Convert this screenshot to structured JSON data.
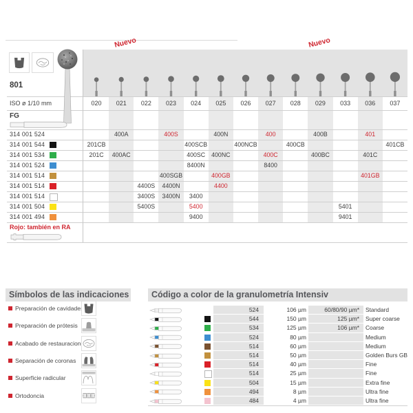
{
  "colors": {
    "accent_red": "#cf2630",
    "band_gray": "#e3e3e3"
  },
  "main_table": {
    "model": "801",
    "nuevo_label": "Nuevo",
    "iso_label": "ISO ø 1/10 mm",
    "shank_label": "FG",
    "footnote": "Rojo: también en RA",
    "header_icons": [
      "cavity-preparation-icon",
      "restoration-finishing-icon"
    ],
    "columns": [
      "020",
      "021",
      "022",
      "023",
      "024",
      "025",
      "026",
      "027",
      "028",
      "029",
      "033",
      "036",
      "037"
    ],
    "rows": [
      {
        "code": "314 001 524",
        "chip": null,
        "cells": [
          {
            "col": "021",
            "value": "400A"
          },
          {
            "col": "023",
            "value": "400S",
            "red": true
          },
          {
            "col": "025",
            "value": "400N"
          },
          {
            "col": "027",
            "value": "400",
            "red": true
          },
          {
            "col": "029",
            "value": "400B"
          },
          {
            "col": "036",
            "value": "401",
            "red": true
          }
        ]
      },
      {
        "code": "314 001 544",
        "chip": "#141414",
        "cells": [
          {
            "col": "020",
            "value": "201CB"
          },
          {
            "col": "024",
            "value": "400SCB"
          },
          {
            "col": "026",
            "value": "400NCB"
          },
          {
            "col": "028",
            "value": "400CB"
          },
          {
            "col": "037",
            "value": "401CB"
          }
        ]
      },
      {
        "code": "314 001 534",
        "chip": "#2fae4a",
        "cells": [
          {
            "col": "020",
            "value": "201C"
          },
          {
            "col": "021",
            "value": "400AC"
          },
          {
            "col": "024",
            "value": "400SC"
          },
          {
            "col": "025",
            "value": "400NC"
          },
          {
            "col": "027",
            "value": "400C",
            "red": true
          },
          {
            "col": "029",
            "value": "400BC"
          },
          {
            "col": "036",
            "value": "401C"
          }
        ]
      },
      {
        "code": "314 001 524",
        "chip": "#3e8ed0",
        "cells": [
          {
            "col": "024",
            "value": "8400N"
          },
          {
            "col": "027",
            "value": "8400"
          }
        ]
      },
      {
        "code": "314 001 514",
        "chip": "#c2913e",
        "cells": [
          {
            "col": "023",
            "value": "400SGB"
          },
          {
            "col": "025",
            "value": "400GB",
            "red": true
          },
          {
            "col": "036",
            "value": "401GB",
            "red": true
          }
        ]
      },
      {
        "code": "314 001 514",
        "chip": "#da2128",
        "cells": [
          {
            "col": "022",
            "value": "4400S"
          },
          {
            "col": "023",
            "value": "4400N"
          },
          {
            "col": "025",
            "value": "4400",
            "red": true
          }
        ]
      },
      {
        "code": "314 001 514",
        "chip": "#ffffff",
        "cells": [
          {
            "col": "022",
            "value": "3400S"
          },
          {
            "col": "023",
            "value": "3400N"
          },
          {
            "col": "024",
            "value": "3400"
          }
        ]
      },
      {
        "code": "314 001 504",
        "chip": "#fbe216",
        "cells": [
          {
            "col": "022",
            "value": "5400S"
          },
          {
            "col": "024",
            "value": "5400",
            "red": true
          },
          {
            "col": "033",
            "value": "5401"
          }
        ]
      },
      {
        "code": "314 001 494",
        "chip": "#f0913c",
        "cells": [
          {
            "col": "024",
            "value": "9400"
          },
          {
            "col": "033",
            "value": "9401"
          }
        ]
      }
    ]
  },
  "symbols_section": {
    "title": "Símbolos de las indicaciones",
    "items": [
      {
        "label": "Preparación de cavidades",
        "icon": "cavity-preparation-icon"
      },
      {
        "label": "Preparación de prótesis",
        "icon": "prosthesis-preparation-icon"
      },
      {
        "label": "Acabado de restauraciones",
        "icon": "restoration-finishing-icon"
      },
      {
        "label": "Separación de coronas",
        "icon": "crown-separation-icon"
      },
      {
        "label": "Superficie radicular",
        "icon": "root-surface-icon"
      },
      {
        "label": "Ortodoncia",
        "icon": "orthodontics-icon"
      }
    ]
  },
  "granulometry_section": {
    "title": "Código a color de la granulometría Intensiv",
    "rows": [
      {
        "chip": null,
        "code": "524",
        "size": "106 µm",
        "alt_size": "60/80/90 µm*",
        "name": "Standard"
      },
      {
        "chip": "#141414",
        "code": "544",
        "size": "150 µm",
        "alt_size": "125 µm*",
        "name": "Super coarse"
      },
      {
        "chip": "#2fae4a",
        "code": "534",
        "size": "125 µm",
        "alt_size": "106 µm*",
        "name": "Coarse"
      },
      {
        "chip": "#3e8ed0",
        "code": "524",
        "size": "80 µm",
        "alt_size": "",
        "name": "Medium"
      },
      {
        "chip": "#7a5230",
        "code": "514",
        "size": "60 µm",
        "alt_size": "",
        "name": "Medium"
      },
      {
        "chip": "#c2913e",
        "code": "514",
        "size": "50 µm",
        "alt_size": "",
        "name": "Golden Burs GB"
      },
      {
        "chip": "#da2128",
        "code": "514",
        "size": "40 µm",
        "alt_size": "",
        "name": "Fine"
      },
      {
        "chip": "#ffffff",
        "code": "514",
        "size": "25 µm",
        "alt_size": "",
        "name": "Fine"
      },
      {
        "chip": "#fbe216",
        "code": "504",
        "size": "15 µm",
        "alt_size": "",
        "name": "Extra fine"
      },
      {
        "chip": "#f0913c",
        "code": "494",
        "size": "8 µm",
        "alt_size": "",
        "name": "Ultra fine"
      },
      {
        "chip": "#f4c3cf",
        "code": "484",
        "size": "4 µm",
        "alt_size": "",
        "name": "Ultra fine"
      }
    ]
  }
}
